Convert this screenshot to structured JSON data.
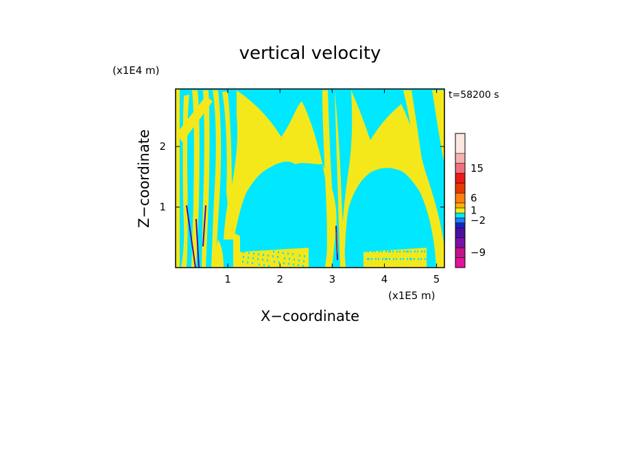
{
  "chart_data": {
    "type": "heatmap",
    "title": "vertical velocity",
    "xlabel": "X−coordinate",
    "ylabel": "Z−coordinate",
    "x_unit": "(x1E5 m)",
    "y_unit": "(x1E4 m)",
    "time_label": "t=58200 s",
    "xlim": [
      0,
      5.15
    ],
    "ylim": [
      0,
      2.95
    ],
    "x_ticks": [
      1,
      2,
      3,
      4,
      5
    ],
    "y_ticks": [
      1,
      2
    ],
    "colorbar": {
      "colors": [
        "#e0149a",
        "#c21489",
        "#7d10a8",
        "#4b0fa0",
        "#1622c8",
        "#1e7ff0",
        "#00e8ff",
        "#f4e81a",
        "#ffb000",
        "#ff7e10",
        "#e63a00",
        "#ee1a1a",
        "#f07080",
        "#f7b0b0",
        "#fde8e0"
      ],
      "labels": [
        "−9",
        "−2",
        "1",
        "6",
        "15"
      ],
      "label_colors": [
        1,
        5,
        7,
        9,
        12
      ]
    },
    "field_colors": {
      "background": "#00e8ff",
      "band": "#f4e81a",
      "strong_down": "#4b0fa0",
      "strong_up": "#e63a00"
    }
  }
}
